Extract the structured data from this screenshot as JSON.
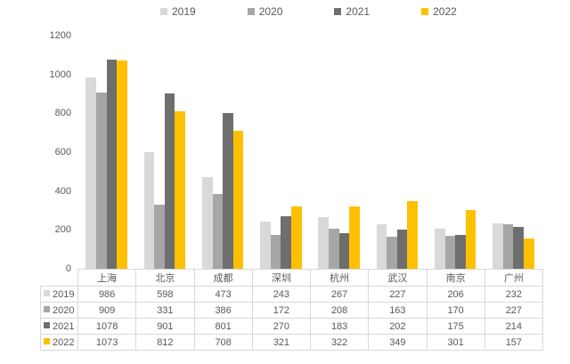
{
  "chart_data": {
    "type": "bar",
    "title": "",
    "categories": [
      "上海",
      "北京",
      "成都",
      "深圳",
      "杭州",
      "武汉",
      "南京",
      "广州"
    ],
    "series": [
      {
        "name": "2019",
        "color": "#D9D9D9",
        "values": [
          986,
          598,
          473,
          243,
          267,
          227,
          206,
          232
        ]
      },
      {
        "name": "2020",
        "color": "#A6A6A6",
        "values": [
          909,
          331,
          386,
          172,
          208,
          163,
          170,
          227
        ]
      },
      {
        "name": "2021",
        "color": "#6E6E6E",
        "values": [
          1078,
          901,
          801,
          270,
          183,
          202,
          175,
          214
        ]
      },
      {
        "name": "2022",
        "color": "#FFC000",
        "values": [
          1073,
          812,
          708,
          321,
          322,
          349,
          301,
          157
        ]
      }
    ],
    "y_axis": {
      "min": 0,
      "max": 1200,
      "step": 200,
      "ticks": [
        0,
        200,
        400,
        600,
        800,
        1000,
        1200
      ]
    },
    "xlabel": "",
    "ylabel": "",
    "legend_position": "top",
    "grid": false,
    "data_table_shown": true,
    "text_color": "#595959",
    "table_border_color": "#d9d9d9",
    "background_color": "#ffffff"
  }
}
